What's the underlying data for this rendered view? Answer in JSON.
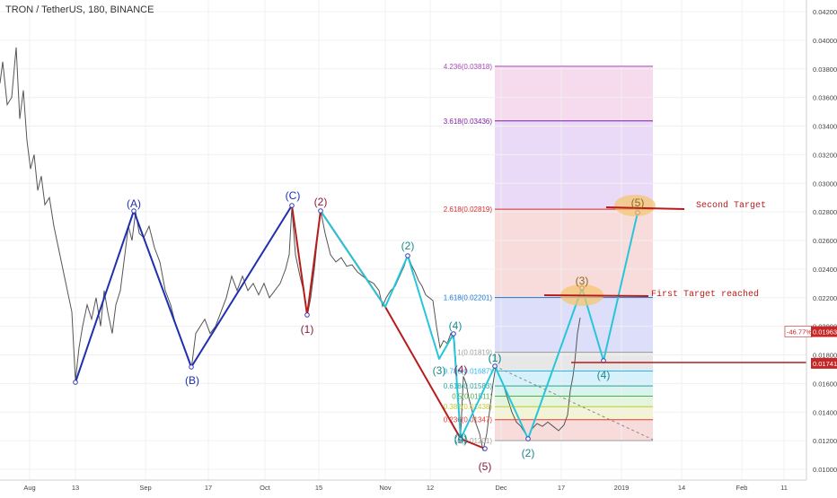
{
  "header": {
    "title": "TRON / TetherUS, 180, BINANCE"
  },
  "chart_data": {
    "type": "line",
    "title": "TRON / TetherUS, 180, BINANCE",
    "ylim": [
      0.0096,
      0.0425
    ],
    "y_ticks": [
      "0.01000",
      "0.01200",
      "0.01400",
      "0.01600",
      "0.01800",
      "0.02000",
      "0.02200",
      "0.02400",
      "0.02600",
      "0.02800",
      "0.03000",
      "0.03200",
      "0.03400",
      "0.03600",
      "0.03800",
      "0.04000",
      "0.04200"
    ],
    "x_tick_labels": [
      "Aug",
      "13",
      "Sep",
      "17",
      "Oct",
      "15",
      "Nov",
      "12",
      "Dec",
      "17",
      "2019",
      "14",
      "Feb",
      "11"
    ],
    "series": [
      {
        "values": [
          [
            0,
            0.037
          ],
          [
            3,
            0.0385
          ],
          [
            8,
            0.0355
          ],
          [
            13,
            0.036
          ],
          [
            18,
            0.0395
          ],
          [
            22,
            0.0345
          ],
          [
            26,
            0.0365
          ],
          [
            30,
            0.033
          ],
          [
            34,
            0.031
          ],
          [
            38,
            0.032
          ],
          [
            42,
            0.0295
          ],
          [
            46,
            0.0305
          ],
          [
            50,
            0.0285
          ],
          [
            55,
            0.029
          ],
          [
            60,
            0.027
          ],
          [
            65,
            0.0255
          ],
          [
            70,
            0.024
          ],
          [
            75,
            0.0225
          ],
          [
            80,
            0.021
          ],
          [
            84,
            0.0162
          ],
          [
            88,
            0.0185
          ],
          [
            92,
            0.02
          ],
          [
            97,
            0.0215
          ],
          [
            102,
            0.0205
          ],
          [
            107,
            0.022
          ],
          [
            112,
            0.02
          ],
          [
            116,
            0.0225
          ],
          [
            120,
            0.021
          ],
          [
            125,
            0.0195
          ],
          [
            129,
            0.0215
          ],
          [
            134,
            0.0225
          ],
          [
            138,
            0.0245
          ],
          [
            143,
            0.027
          ],
          [
            147,
            0.026
          ],
          [
            151,
            0.028
          ],
          [
            155,
            0.0265
          ],
          [
            160,
            0.0262
          ],
          [
            166,
            0.027
          ],
          [
            172,
            0.0255
          ],
          [
            178,
            0.0245
          ],
          [
            184,
            0.0225
          ],
          [
            190,
            0.0215
          ],
          [
            196,
            0.02
          ],
          [
            202,
            0.019
          ],
          [
            208,
            0.018
          ],
          [
            213,
            0.017
          ],
          [
            218,
            0.0195
          ],
          [
            223,
            0.02
          ],
          [
            228,
            0.0205
          ],
          [
            234,
            0.0195
          ],
          [
            240,
            0.02
          ],
          [
            246,
            0.021
          ],
          [
            252,
            0.022
          ],
          [
            258,
            0.0235
          ],
          [
            264,
            0.0225
          ],
          [
            270,
            0.0235
          ],
          [
            276,
            0.0225
          ],
          [
            282,
            0.023
          ],
          [
            288,
            0.0222
          ],
          [
            294,
            0.023
          ],
          [
            300,
            0.022
          ],
          [
            306,
            0.0225
          ],
          [
            312,
            0.023
          ],
          [
            318,
            0.024
          ],
          [
            322,
            0.025
          ],
          [
            325,
            0.0283
          ],
          [
            329,
            0.025
          ],
          [
            334,
            0.0235
          ],
          [
            338,
            0.0225
          ],
          [
            342,
            0.0207
          ],
          [
            346,
            0.022
          ],
          [
            350,
            0.024
          ],
          [
            354,
            0.0265
          ],
          [
            357,
            0.0281
          ],
          [
            362,
            0.0265
          ],
          [
            368,
            0.025
          ],
          [
            374,
            0.0245
          ],
          [
            380,
            0.0248
          ],
          [
            386,
            0.0242
          ],
          [
            392,
            0.0243
          ],
          [
            398,
            0.0238
          ],
          [
            404,
            0.0235
          ],
          [
            410,
            0.0232
          ],
          [
            416,
            0.023
          ],
          [
            422,
            0.0225
          ],
          [
            426,
            0.0214
          ],
          [
            430,
            0.022
          ],
          [
            435,
            0.0225
          ],
          [
            440,
            0.0228
          ],
          [
            445,
            0.0235
          ],
          [
            450,
            0.0242
          ],
          [
            454,
            0.025
          ],
          [
            458,
            0.0243
          ],
          [
            462,
            0.0238
          ],
          [
            466,
            0.0232
          ],
          [
            470,
            0.0228
          ],
          [
            474,
            0.0222
          ],
          [
            478,
            0.022
          ],
          [
            482,
            0.0218
          ],
          [
            486,
            0.02
          ],
          [
            490,
            0.0185
          ],
          [
            494,
            0.019
          ],
          [
            498,
            0.0188
          ],
          [
            502,
            0.0195
          ],
          [
            506,
            0.019
          ],
          [
            508,
            0.017
          ],
          [
            510,
            0.015
          ],
          [
            513,
            0.0125
          ],
          [
            516,
            0.0165
          ],
          [
            519,
            0.016
          ],
          [
            522,
            0.015
          ],
          [
            526,
            0.014
          ],
          [
            530,
            0.0132
          ],
          [
            534,
            0.0125
          ],
          [
            538,
            0.0113
          ],
          [
            542,
            0.0125
          ],
          [
            546,
            0.0145
          ],
          [
            549,
            0.016
          ],
          [
            552,
            0.0172
          ],
          [
            556,
            0.0165
          ],
          [
            560,
            0.016
          ],
          [
            565,
            0.015
          ],
          [
            570,
            0.014
          ],
          [
            575,
            0.0133
          ],
          [
            580,
            0.013
          ],
          [
            585,
            0.0125
          ],
          [
            588,
            0.0121
          ],
          [
            592,
            0.0128
          ],
          [
            598,
            0.0132
          ],
          [
            604,
            0.013
          ],
          [
            610,
            0.0133
          ],
          [
            616,
            0.013
          ],
          [
            622,
            0.0127
          ],
          [
            628,
            0.0131
          ],
          [
            632,
            0.0138
          ],
          [
            635,
            0.0155
          ],
          [
            638,
            0.0165
          ],
          [
            640,
            0.0175
          ],
          [
            643,
            0.0195
          ],
          [
            646,
            0.0206
          ]
        ]
      }
    ],
    "fibonacci": {
      "levels": [
        {
          "label": "4.236(0.03818)",
          "value": 0.03818,
          "color": "#ab47bc"
        },
        {
          "label": "3.618(0.03436)",
          "value": 0.03436,
          "color": "#7b1fa2"
        },
        {
          "label": "2.618(0.02819)",
          "value": 0.02819,
          "color": "#d32f2f"
        },
        {
          "label": "1.618(0.02201)",
          "value": 0.02201,
          "color": "#1976d2"
        },
        {
          "label": "1(0.01819)",
          "value": 0.01819,
          "color": "#9e9e9e"
        },
        {
          "label": "0.786(0.01687)",
          "value": 0.01687,
          "color": "#29b6f6"
        },
        {
          "label": "0.618(0.01583)",
          "value": 0.01583,
          "color": "#26a69a"
        },
        {
          "label": "0.5(0.01511)",
          "value": 0.01511,
          "color": "#4caf50"
        },
        {
          "label": "0.382(0.01438)",
          "value": 0.01438,
          "color": "#c0ca33"
        },
        {
          "label": "0.236(0.01347)",
          "value": 0.01347,
          "color": "#e53935"
        },
        {
          "label": "0(0.01201)",
          "value": 0.01201,
          "color": "#9e9e9e"
        }
      ],
      "bands": [
        {
          "from": 0.03818,
          "to": 0.03436,
          "color": "#f5d3ea"
        },
        {
          "from": 0.03436,
          "to": 0.02819,
          "color": "#e6d3f7"
        },
        {
          "from": 0.02819,
          "to": 0.02201,
          "color": "#f7d5d5"
        },
        {
          "from": 0.02201,
          "to": 0.01819,
          "color": "#d7d8f8"
        },
        {
          "from": 0.01819,
          "to": 0.01687,
          "color": "#e3e3e3"
        },
        {
          "from": 0.01687,
          "to": 0.01583,
          "color": "#cdeefb"
        },
        {
          "from": 0.01583,
          "to": 0.01511,
          "color": "#d3f1ea"
        },
        {
          "from": 0.01511,
          "to": 0.01438,
          "color": "#dff3d7"
        },
        {
          "from": 0.01438,
          "to": 0.01347,
          "color": "#f0f2cc"
        },
        {
          "from": 0.01347,
          "to": 0.01201,
          "color": "#f7d6d6"
        }
      ]
    },
    "price_tags": [
      {
        "label": "-46.77%",
        "value": 0.01963,
        "color": "#ffffff",
        "text_color": "#c62828",
        "border": "#c62828"
      },
      {
        "label": "0.01963",
        "value": 0.01963,
        "color": "#c62828",
        "text_color": "#ffffff"
      },
      {
        "label": "0.01741",
        "value": 0.01741,
        "color": "#c62828",
        "text_color": "#ffffff"
      }
    ],
    "annotations": {
      "first_target": "First Target reached",
      "second_target": "Second Target"
    },
    "wave_labels": [
      {
        "text": "(A)",
        "color": "#1f2fb0"
      },
      {
        "text": "(B)",
        "color": "#1f2fb0"
      },
      {
        "text": "(C)",
        "color": "#1f2fb0"
      },
      {
        "text": "(2)",
        "color": "#8b1a3c"
      },
      {
        "text": "(1)",
        "color": "#8b1a3c"
      },
      {
        "text": "(5)",
        "color": "#8b1a3c"
      },
      {
        "text": "(1)",
        "color": "#1b8a8a"
      },
      {
        "text": "(2)",
        "color": "#1b8a8a"
      },
      {
        "text": "(3)",
        "color": "#1b8a8a"
      },
      {
        "text": "(4)",
        "color": "#1b8a8a"
      },
      {
        "text": "(5)",
        "color": "#1b8a8a"
      },
      {
        "text": "(4)",
        "color": "#8b1a3c"
      },
      {
        "text": "(3)",
        "color": "#1b8a8a"
      },
      {
        "text": "(1)",
        "color": "#1b8a8a"
      },
      {
        "text": "(2)",
        "color": "#1b8a8a"
      },
      {
        "text": "(3)",
        "color": "#8b6a1a"
      },
      {
        "text": "(4)",
        "color": "#1b8a8a"
      },
      {
        "text": "(5)",
        "color": "#8b6a1a"
      }
    ],
    "colors": {
      "price": "#555555",
      "abc_wave": "#1f2fb0",
      "impulse_down": "#b71c1c",
      "cyan_wave": "#26c6da",
      "grid": "#f0f0f0",
      "axis_text": "#444444",
      "target_ellipse": "#f5c56a"
    }
  }
}
